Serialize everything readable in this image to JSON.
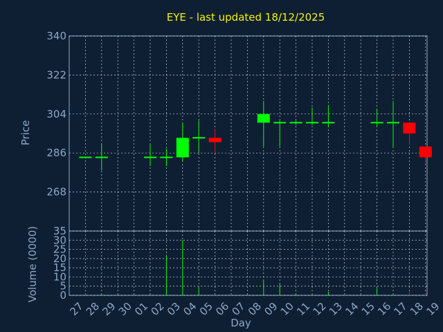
{
  "chart_data": {
    "type": "candlestick",
    "title": "EYE - last updated 18/12/2025",
    "xlabel": "Day",
    "ylabel_price": "Price",
    "ylabel_volume": "Volume (0000)",
    "price_ticks": [
      "340",
      "322",
      "304",
      "286",
      "268"
    ],
    "price_ylim": [
      250,
      340
    ],
    "volume_ticks": [
      "0",
      "5",
      "10",
      "15",
      "20",
      "25",
      "30",
      "35"
    ],
    "volume_ylim": [
      0,
      35
    ],
    "grid": true,
    "colors": {
      "up": "#00ff00",
      "down": "#ff0000",
      "title": "#f2f20a",
      "axis": "#8aa8c8",
      "grid": "#ffffff",
      "frame": "#1a2a3f"
    },
    "x_labels": [
      "27",
      "28",
      "29",
      "30",
      "01",
      "02",
      "03",
      "04",
      "05",
      "06",
      "07",
      "08",
      "09",
      "10",
      "11",
      "12",
      "13",
      "14",
      "15",
      "16",
      "17",
      "18",
      "19"
    ],
    "candles": [
      {
        "i": 0,
        "open": 284,
        "high": 284,
        "low": 284,
        "close": 284,
        "volume": 0
      },
      {
        "i": 1,
        "open": 284,
        "high": 290,
        "low": 278,
        "close": 284,
        "volume": 0.6
      },
      {
        "i": 4,
        "open": 284,
        "high": 290,
        "low": 280,
        "close": 284,
        "volume": 0.3
      },
      {
        "i": 5,
        "open": 284,
        "high": 288,
        "low": 280,
        "close": 284,
        "volume": 22
      },
      {
        "i": 6,
        "open": 284,
        "high": 300,
        "low": 282,
        "close": 293,
        "volume": 30
      },
      {
        "i": 7,
        "open": 293,
        "high": 301,
        "low": 286,
        "close": 293,
        "volume": 4.5
      },
      {
        "i": 8,
        "open": 293,
        "high": 297,
        "low": 286,
        "close": 291,
        "volume": 0.4
      },
      {
        "i": 11,
        "open": 300,
        "high": 310,
        "low": 289,
        "close": 304,
        "volume": 8
      },
      {
        "i": 12,
        "open": 300,
        "high": 301,
        "low": 289,
        "close": 300,
        "volume": 6
      },
      {
        "i": 13,
        "open": 300,
        "high": 301,
        "low": 299,
        "close": 300,
        "volume": 0.4
      },
      {
        "i": 14,
        "open": 300,
        "high": 307,
        "low": 299,
        "close": 300,
        "volume": 0.3
      },
      {
        "i": 15,
        "open": 300,
        "high": 308,
        "low": 298,
        "close": 300,
        "volume": 2
      },
      {
        "i": 18,
        "open": 300,
        "high": 306,
        "low": 298,
        "close": 300,
        "volume": 4
      },
      {
        "i": 19,
        "open": 300,
        "high": 310,
        "low": 289,
        "close": 300,
        "volume": 0.8
      },
      {
        "i": 20,
        "open": 300,
        "high": 300,
        "low": 290,
        "close": 295,
        "volume": 2
      },
      {
        "i": 21,
        "open": 289,
        "high": 289,
        "low": 281,
        "close": 284,
        "volume": 1.5
      }
    ]
  }
}
